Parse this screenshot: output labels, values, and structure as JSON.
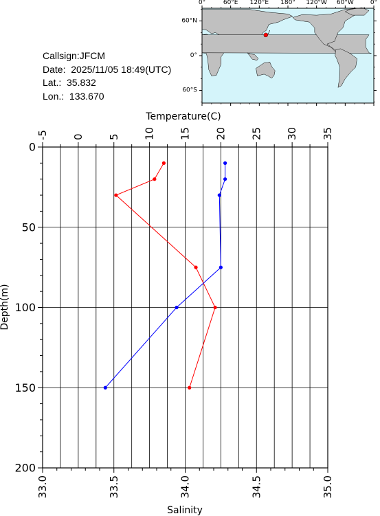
{
  "info": {
    "callsign": "Callsign:JFCM",
    "date": "Date:  2025/11/05 18:49(UTC)",
    "lat": "Lat.:  35.832",
    "lon": "Lon.:  133.670"
  },
  "map": {
    "lon_labels": [
      "0°",
      "60°E",
      "120°E",
      "180°",
      "120°W",
      "60°W",
      "0°"
    ],
    "lat_labels": [
      "60°N",
      "0°",
      "60°S"
    ],
    "marker_lat": 35.832,
    "marker_lon": 133.67,
    "ocean_color": "#d4f4fa",
    "land_color": "#c0c0c0",
    "marker_color": "#ff0000"
  },
  "chart_data": {
    "type": "line",
    "xlabel_top": "Temperature(C)",
    "xlabel_bottom": "Salinity",
    "ylabel": "Depth(m)",
    "temperature_range": [
      -5,
      35
    ],
    "temperature_ticks": [
      -5,
      0,
      5,
      10,
      15,
      20,
      25,
      30,
      35
    ],
    "salinity_range": [
      33.0,
      35.0
    ],
    "salinity_ticks": [
      "33.0",
      "33.5",
      "34.0",
      "34.5",
      "35.0"
    ],
    "depth_range": [
      0,
      200
    ],
    "depth_ticks": [
      0,
      50,
      100,
      150,
      200
    ],
    "grid": true,
    "series": [
      {
        "key": "temperature",
        "color": "#ff0000",
        "depth": [
          10,
          20,
          30,
          75,
          100,
          150
        ],
        "values": [
          12.0,
          10.7,
          5.3,
          16.5,
          19.2,
          15.6
        ]
      },
      {
        "key": "salinity",
        "color": "#0000ff",
        "depth": [
          10,
          20,
          30,
          75,
          100,
          150
        ],
        "values": [
          34.28,
          34.28,
          34.24,
          34.25,
          33.94,
          33.44
        ]
      }
    ]
  }
}
